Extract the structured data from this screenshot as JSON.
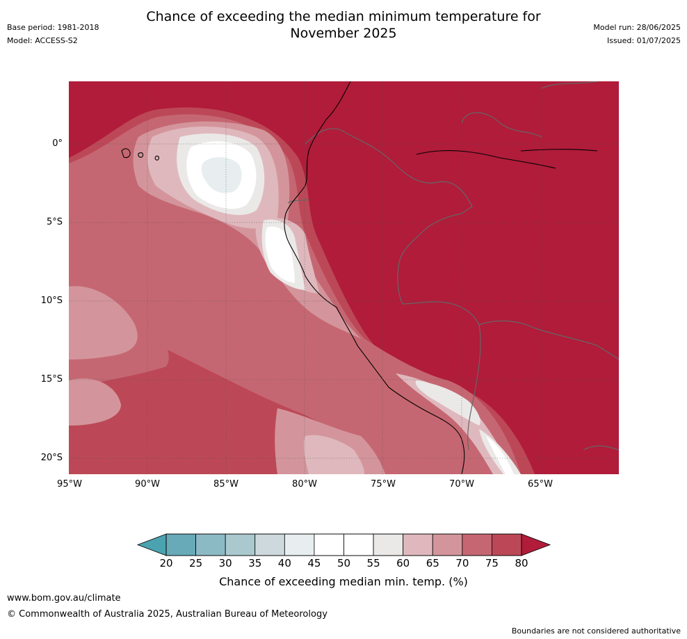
{
  "header": {
    "title_line1": "Chance of exceeding the median minimum temperature for",
    "title_line2": "November 2025",
    "base_period": "Base period: 1981-2018",
    "model": "Model: ACCESS-S2",
    "model_run": "Model run: 28/06/2025",
    "issued": "Issued: 01/07/2025"
  },
  "map": {
    "region": "Western South America and eastern Pacific",
    "lat_labels": [
      "0°",
      "5°S",
      "10°S",
      "15°S",
      "20°S"
    ],
    "lon_labels": [
      "95°W",
      "90°W",
      "85°W",
      "80°W",
      "75°W",
      "70°W",
      "65°W"
    ],
    "background_color": "#b01c3a",
    "coastline_color": "#000000",
    "border_color": "#666666"
  },
  "colorbar": {
    "ticks": [
      "20",
      "25",
      "30",
      "35",
      "40",
      "45",
      "50",
      "55",
      "60",
      "65",
      "70",
      "75",
      "80"
    ],
    "colors": [
      "#68aab7",
      "#8cbac4",
      "#aac9cf",
      "#cdd9dc",
      "#e8eef0",
      "#ffffff",
      "#ffffff",
      "#ebe9e8",
      "#dfb8bd",
      "#d3959b",
      "#c56772",
      "#bc4857"
    ],
    "under_color": "#4ba3b0",
    "over_color": "#b01c3a",
    "label": "Chance of exceeding median min. temp. (%)"
  },
  "footer": {
    "website": "www.bom.gov.au/climate",
    "copyright": "© Commonwealth of Australia 2025, Australian Bureau of Meteorology",
    "disclaimer": "Boundaries are not considered authoritative"
  }
}
